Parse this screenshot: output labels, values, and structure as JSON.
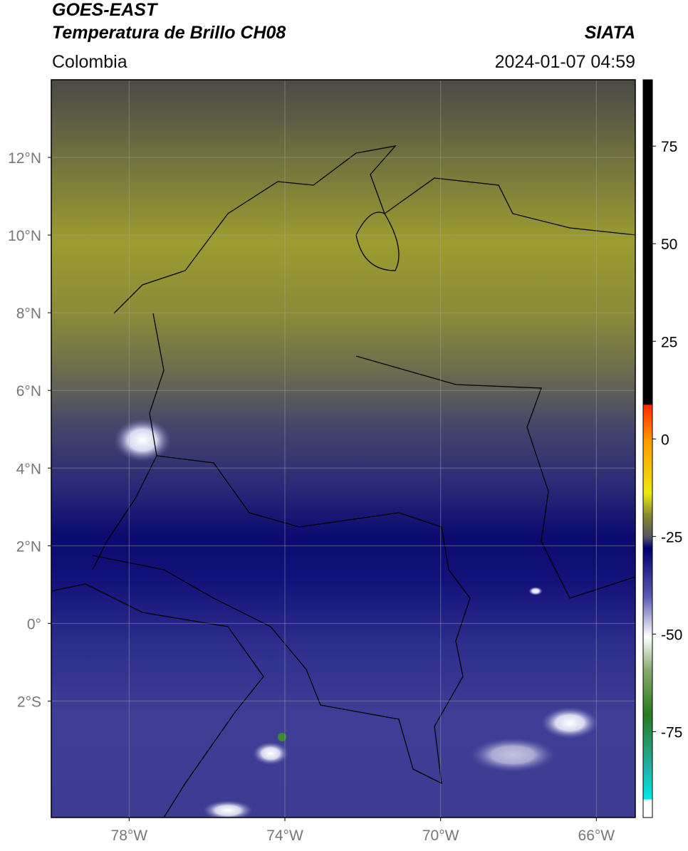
{
  "header": {
    "title_line1": "GOES-EAST",
    "title_line2": "Temperatura de Brillo CH08",
    "region": "Colombia",
    "source": "SIATA",
    "datetime": "2024-01-07 04:59"
  },
  "map": {
    "lon_range": [
      -80,
      -65
    ],
    "lat_range": [
      -5,
      14
    ],
    "grid": true,
    "lat_ticks": [
      {
        "value": 12,
        "label": "12°N"
      },
      {
        "value": 10,
        "label": "10°N"
      },
      {
        "value": 8,
        "label": "8°N"
      },
      {
        "value": 6,
        "label": "6°N"
      },
      {
        "value": 4,
        "label": "4°N"
      },
      {
        "value": 2,
        "label": "2°N"
      },
      {
        "value": 0,
        "label": "0°"
      },
      {
        "value": -2,
        "label": "2°S"
      }
    ],
    "lon_ticks": [
      {
        "value": -78,
        "label": "78°W"
      },
      {
        "value": -74,
        "label": "74°W"
      },
      {
        "value": -70,
        "label": "70°W"
      },
      {
        "value": -66,
        "label": "66°W"
      }
    ]
  },
  "colorbar": {
    "lim": [
      -97,
      92
    ],
    "ticks": [
      75,
      50,
      25,
      0,
      -25,
      -50,
      -75
    ]
  }
}
